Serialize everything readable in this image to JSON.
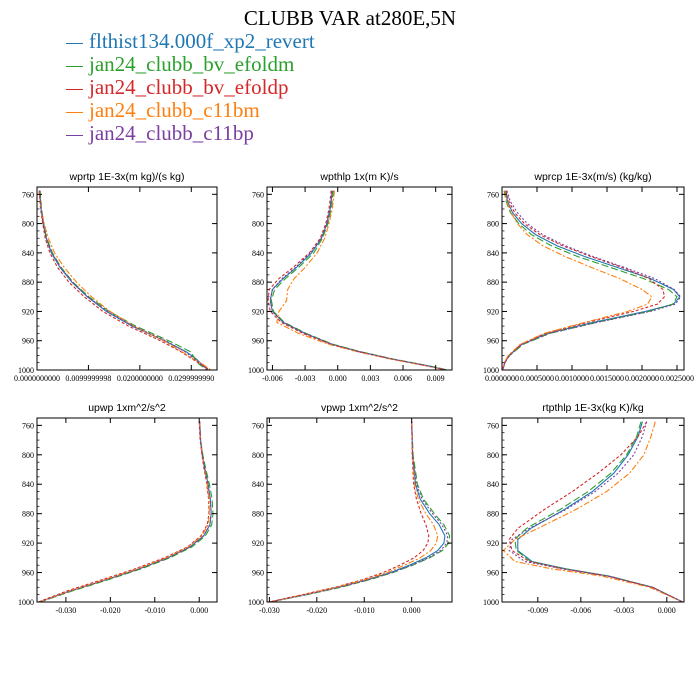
{
  "title": "CLUBB VAR at280E,5N",
  "legend": [
    {
      "label": "flthist134.000f_xp2_revert",
      "color": "#1f77b4"
    },
    {
      "label": "jan24_clubb_bv_efoldm",
      "color": "#2ca02c"
    },
    {
      "label": "jan24_clubb_bv_efoldp",
      "color": "#d62728"
    },
    {
      "label": "jan24_clubb_c11bm",
      "color": "#ff7f0e"
    },
    {
      "label": "jan24_clubb_c11bp",
      "color": "#7b3fa0"
    }
  ],
  "chart_data": [
    {
      "type": "line",
      "title": "wprtp   1E-3x(m kg)/(s kg)",
      "xlim": [
        0,
        0.035
      ],
      "ylim": [
        1000,
        750
      ],
      "xticks": [
        0,
        0.01,
        0.02,
        0.03
      ],
      "xtick_labels": [
        "0.0000000000",
        "0.0099999998",
        "0.0200000000",
        "0.0299999990"
      ],
      "yticks": [
        760,
        800,
        840,
        880,
        920,
        960,
        1000
      ],
      "y": [
        755,
        780,
        800,
        820,
        840,
        860,
        880,
        900,
        920,
        940,
        960,
        975,
        985,
        992,
        1000
      ],
      "series": [
        {
          "values": [
            0.0005,
            0.0008,
            0.0012,
            0.0018,
            0.0028,
            0.0045,
            0.0068,
            0.0098,
            0.0135,
            0.0185,
            0.0248,
            0.029,
            0.031,
            0.032,
            0.0333
          ]
        },
        {
          "values": [
            0.0006,
            0.0009,
            0.0013,
            0.0019,
            0.003,
            0.0047,
            0.007,
            0.0101,
            0.014,
            0.0192,
            0.0256,
            0.0298,
            0.0308,
            0.0315,
            0.033
          ]
        },
        {
          "values": [
            0.0004,
            0.0007,
            0.0011,
            0.0016,
            0.0025,
            0.004,
            0.0062,
            0.0092,
            0.0128,
            0.0178,
            0.024,
            0.028,
            0.0302,
            0.0318,
            0.0336
          ]
        },
        {
          "values": [
            0.0004,
            0.0008,
            0.0014,
            0.0022,
            0.0034,
            0.0053,
            0.0077,
            0.0106,
            0.0142,
            0.0188,
            0.0246,
            0.0282,
            0.0304,
            0.0322,
            0.0338
          ]
        },
        {
          "values": [
            0.0005,
            0.0008,
            0.0012,
            0.0018,
            0.0029,
            0.0046,
            0.0069,
            0.0099,
            0.0137,
            0.0187,
            0.025,
            0.0288,
            0.0306,
            0.0318,
            0.0332
          ]
        }
      ]
    },
    {
      "type": "line",
      "title": "wpthlp   1x(m K)/s",
      "xlim": [
        -0.0065,
        0.0105
      ],
      "ylim": [
        1000,
        750
      ],
      "xticks": [
        -0.006,
        -0.003,
        0.0,
        0.003,
        0.006,
        0.009
      ],
      "xtick_labels": [
        "-0.006",
        "-0.003",
        "0.000",
        "0.003",
        "0.006",
        "0.009"
      ],
      "yticks": [
        760,
        800,
        840,
        880,
        920,
        960,
        1000
      ],
      "y": [
        755,
        780,
        800,
        820,
        840,
        860,
        875,
        890,
        905,
        920,
        935,
        950,
        965,
        975,
        985,
        995,
        1000
      ],
      "series": [
        {
          "values": [
            -0.0005,
            -0.0007,
            -0.001,
            -0.0015,
            -0.0024,
            -0.0038,
            -0.005,
            -0.006,
            -0.0062,
            -0.006,
            -0.005,
            -0.003,
            -0.0005,
            0.002,
            0.005,
            0.0085,
            0.01
          ]
        },
        {
          "values": [
            -0.0004,
            -0.0006,
            -0.0009,
            -0.0014,
            -0.0022,
            -0.0036,
            -0.0048,
            -0.0058,
            -0.0061,
            -0.0059,
            -0.0049,
            -0.0029,
            -0.0004,
            0.0021,
            0.0051,
            0.0086,
            0.0101
          ]
        },
        {
          "values": [
            -0.0006,
            -0.0008,
            -0.0011,
            -0.0016,
            -0.0026,
            -0.0041,
            -0.0054,
            -0.0063,
            -0.0064,
            -0.0062,
            -0.0052,
            -0.0032,
            -0.0006,
            0.0019,
            0.0049,
            0.0084,
            0.0099
          ]
        },
        {
          "values": [
            -0.0003,
            -0.0005,
            -0.0008,
            -0.0012,
            -0.0019,
            -0.003,
            -0.004,
            -0.0046,
            -0.0047,
            -0.0054,
            -0.0056,
            -0.0036,
            -0.0008,
            0.0018,
            0.0048,
            0.0083,
            0.01
          ]
        },
        {
          "values": [
            -0.0005,
            -0.0007,
            -0.001,
            -0.0015,
            -0.0025,
            -0.0039,
            -0.0051,
            -0.006,
            -0.0062,
            -0.006,
            -0.005,
            -0.003,
            -0.0005,
            0.002,
            0.005,
            0.0085,
            0.01
          ]
        }
      ]
    },
    {
      "type": "line",
      "title": "wprcp   1E-3x(m/s) (kg/kg)",
      "xlim": [
        0,
        0.0026
      ],
      "ylim": [
        1000,
        750
      ],
      "xticks": [
        0,
        0.0005,
        0.001,
        0.0015,
        0.002,
        0.0025
      ],
      "xtick_labels": [
        "0.0000000",
        "0.0005000",
        "0.0010000",
        "0.0015000",
        "0.0020000",
        "0.0025000"
      ],
      "yticks": [
        760,
        800,
        840,
        880,
        920,
        960,
        1000
      ],
      "y": [
        755,
        770,
        785,
        800,
        815,
        830,
        845,
        860,
        875,
        890,
        900,
        910,
        920,
        935,
        950,
        965,
        980,
        990,
        1000
      ],
      "series": [
        {
          "values": [
            5e-05,
            8e-05,
            0.00015,
            0.00028,
            0.00048,
            0.00078,
            0.00118,
            0.00165,
            0.00212,
            0.00245,
            0.00254,
            0.00245,
            0.00205,
            0.0013,
            0.00065,
            0.00028,
            0.0001,
            4e-05,
            1e-05
          ]
        },
        {
          "values": [
            3e-05,
            6e-05,
            0.00012,
            0.00024,
            0.00042,
            0.0007,
            0.00108,
            0.00155,
            0.00202,
            0.00238,
            0.0025,
            0.00244,
            0.0021,
            0.00135,
            0.00068,
            0.0003,
            0.00011,
            4e-05,
            1e-05
          ]
        },
        {
          "values": [
            6e-05,
            0.0001,
            0.00018,
            0.00032,
            0.00054,
            0.00086,
            0.00127,
            0.00172,
            0.0021,
            0.0023,
            0.00232,
            0.00222,
            0.00188,
            0.00122,
            0.00062,
            0.00027,
            0.0001,
            4e-05,
            1e-05
          ]
        },
        {
          "values": [
            4e-05,
            7e-05,
            0.00013,
            0.00022,
            0.00036,
            0.00058,
            0.0009,
            0.00128,
            0.00168,
            0.002,
            0.00214,
            0.00208,
            0.0018,
            0.00118,
            0.0006,
            0.00026,
            9e-05,
            3e-05,
            1e-05
          ]
        },
        {
          "values": [
            7e-05,
            0.00012,
            0.00022,
            0.00036,
            0.00058,
            0.0009,
            0.0013,
            0.00175,
            0.00218,
            0.00246,
            0.00255,
            0.00248,
            0.00212,
            0.00136,
            0.00068,
            0.00029,
            0.00011,
            4e-05,
            1e-05
          ]
        }
      ]
    },
    {
      "type": "line",
      "title": "upwp   1xm^2/s^2",
      "xlim": [
        -0.0365,
        0.004
      ],
      "ylim": [
        1000,
        750
      ],
      "xticks": [
        -0.03,
        -0.02,
        -0.01,
        0.0
      ],
      "xtick_labels": [
        "-0.030",
        "-0.020",
        "-0.010",
        "0.000"
      ],
      "yticks": [
        760,
        800,
        840,
        880,
        920,
        960,
        1000
      ],
      "y": [
        755,
        780,
        800,
        820,
        840,
        860,
        880,
        895,
        910,
        925,
        940,
        955,
        970,
        985,
        1000
      ],
      "series": [
        {
          "values": [
            0.0001,
            0.0003,
            0.0007,
            0.0013,
            0.002,
            0.0025,
            0.0027,
            0.0024,
            0.001,
            -0.002,
            -0.007,
            -0.0135,
            -0.021,
            -0.029,
            -0.036
          ]
        },
        {
          "values": [
            0.0001,
            0.0003,
            0.0008,
            0.0015,
            0.0023,
            0.0029,
            0.0031,
            0.0028,
            0.0014,
            -0.0016,
            -0.0066,
            -0.0131,
            -0.0206,
            -0.0286,
            -0.0358
          ]
        },
        {
          "values": [
            0.0,
            0.0002,
            0.0006,
            0.0011,
            0.0017,
            0.0021,
            0.0022,
            0.0018,
            0.0004,
            -0.0026,
            -0.0078,
            -0.0145,
            -0.022,
            -0.0298,
            -0.0362
          ]
        },
        {
          "values": [
            0.0001,
            0.0003,
            0.0007,
            0.0012,
            0.0018,
            0.0022,
            0.0023,
            0.002,
            0.0006,
            -0.0024,
            -0.0074,
            -0.014,
            -0.0214,
            -0.0292,
            -0.036
          ]
        },
        {
          "values": [
            0.0001,
            0.0003,
            0.0007,
            0.0013,
            0.002,
            0.0025,
            0.0027,
            0.0024,
            0.001,
            -0.002,
            -0.007,
            -0.0135,
            -0.021,
            -0.029,
            -0.036
          ]
        }
      ]
    },
    {
      "type": "line",
      "title": "vpwp   1xm^2/s^2",
      "xlim": [
        -0.0305,
        0.0085
      ],
      "ylim": [
        1000,
        750
      ],
      "xticks": [
        -0.03,
        -0.02,
        -0.01,
        0.0
      ],
      "xtick_labels": [
        "-0.030",
        "-0.020",
        "-0.010",
        "0.000"
      ],
      "yticks": [
        760,
        800,
        840,
        880,
        920,
        960,
        1000
      ],
      "y": [
        755,
        800,
        840,
        860,
        880,
        895,
        910,
        920,
        930,
        940,
        950,
        960,
        970,
        980,
        990,
        1000
      ],
      "series": [
        {
          "values": [
            0.0,
            0.0002,
            0.0008,
            0.0018,
            0.0038,
            0.0058,
            0.007,
            0.0068,
            0.0055,
            0.003,
            -0.0005,
            -0.0045,
            -0.0095,
            -0.0155,
            -0.0225,
            -0.03
          ]
        },
        {
          "values": [
            0.0,
            0.0003,
            0.0012,
            0.0025,
            0.0048,
            0.0068,
            0.008,
            0.0078,
            0.0065,
            0.0038,
            0.0002,
            -0.004,
            -0.009,
            -0.015,
            -0.022,
            -0.0298
          ]
        },
        {
          "values": [
            0.0,
            0.0001,
            0.0004,
            0.001,
            0.002,
            0.003,
            0.0036,
            0.0034,
            0.0024,
            0.0005,
            -0.0025,
            -0.006,
            -0.0105,
            -0.0162,
            -0.023,
            -0.0302
          ]
        },
        {
          "values": [
            0.0,
            0.0002,
            0.0006,
            0.0014,
            0.003,
            0.0046,
            0.0055,
            0.0052,
            0.004,
            0.0018,
            -0.0015,
            -0.0052,
            -0.01,
            -0.0158,
            -0.0226,
            -0.03
          ]
        },
        {
          "values": [
            0.0,
            0.0002,
            0.001,
            0.0022,
            0.0044,
            0.0064,
            0.0076,
            0.0074,
            0.0061,
            0.0035,
            0.0,
            -0.0042,
            -0.0092,
            -0.0152,
            -0.0222,
            -0.0299
          ]
        }
      ]
    },
    {
      "type": "line",
      "title": "rtpthlp   1E-3x(kg K)/kg",
      "xlim": [
        -0.0115,
        0.0012
      ],
      "ylim": [
        1000,
        750
      ],
      "xticks": [
        -0.009,
        -0.006,
        -0.003,
        0.0
      ],
      "xtick_labels": [
        "-0.009",
        "-0.006",
        "-0.003",
        "0.000"
      ],
      "yticks": [
        760,
        800,
        840,
        880,
        920,
        960,
        1000
      ],
      "y": [
        755,
        775,
        800,
        825,
        850,
        875,
        900,
        915,
        930,
        945,
        955,
        965,
        980,
        1000
      ],
      "series": [
        {
          "values": [
            -0.0017,
            -0.002,
            -0.0027,
            -0.0037,
            -0.0052,
            -0.0072,
            -0.0095,
            -0.0104,
            -0.0104,
            -0.0094,
            -0.007,
            -0.004,
            -0.001,
            0.0011
          ]
        },
        {
          "values": [
            -0.0018,
            -0.0021,
            -0.0028,
            -0.0039,
            -0.0055,
            -0.0075,
            -0.0098,
            -0.0106,
            -0.0105,
            -0.0095,
            -0.0071,
            -0.004,
            -0.001,
            0.0011
          ]
        },
        {
          "values": [
            -0.0014,
            -0.002,
            -0.0032,
            -0.0048,
            -0.0066,
            -0.0086,
            -0.0104,
            -0.011,
            -0.0108,
            -0.0096,
            -0.0072,
            -0.0041,
            -0.001,
            0.0011
          ]
        },
        {
          "values": [
            -0.0008,
            -0.0011,
            -0.0016,
            -0.0026,
            -0.0042,
            -0.0064,
            -0.009,
            -0.0106,
            -0.0114,
            -0.0106,
            -0.008,
            -0.0045,
            -0.0012,
            0.0011
          ]
        },
        {
          "values": [
            -0.0014,
            -0.0017,
            -0.0023,
            -0.0034,
            -0.005,
            -0.0071,
            -0.0096,
            -0.0108,
            -0.011,
            -0.0099,
            -0.0073,
            -0.0041,
            -0.001,
            0.0011
          ]
        }
      ]
    }
  ]
}
